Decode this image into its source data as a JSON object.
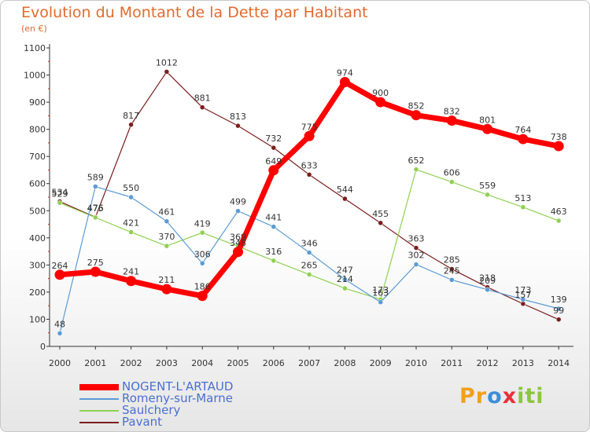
{
  "chart_data": {
    "type": "line",
    "title": "Evolution du Montant de la Dette par Habitant",
    "subtitle": "(en €)",
    "x": [
      "2000",
      "2001",
      "2002",
      "2003",
      "2004",
      "2005",
      "2006",
      "2007",
      "2008",
      "2009",
      "2010",
      "2011",
      "2012",
      "2013",
      "2014"
    ],
    "yticks": [
      0,
      100,
      200,
      300,
      400,
      500,
      600,
      700,
      800,
      900,
      1000,
      1100
    ],
    "ylim": [
      0,
      1100
    ],
    "grid": false,
    "legend_position": "bottom-left",
    "series": [
      {
        "name": "NOGENT-L'ARTAUD",
        "color": "#ff0000",
        "values": [
          264,
          275,
          241,
          211,
          186,
          348,
          649,
          775,
          974,
          900,
          852,
          832,
          801,
          764,
          738
        ]
      },
      {
        "name": "Romeny-sur-Marne",
        "color": "#5b9bd5",
        "values": [
          48,
          589,
          550,
          461,
          306,
          499,
          441,
          346,
          247,
          163,
          302,
          245,
          209,
          173,
          139
        ]
      },
      {
        "name": "Saulchery",
        "color": "#8fd14f",
        "values": [
          529,
          475,
          421,
          370,
          419,
          369,
          316,
          265,
          214,
          173,
          652,
          606,
          559,
          513,
          463
        ]
      },
      {
        "name": "Pavant",
        "color": "#7b1d1d",
        "values": [
          534,
          476,
          817,
          1012,
          881,
          813,
          732,
          633,
          544,
          455,
          363,
          285,
          218,
          157,
          99
        ]
      }
    ]
  },
  "logo": {
    "parts": [
      {
        "text": "P",
        "color": "#f0a020"
      },
      {
        "text": "r",
        "color": "#f0a020"
      },
      {
        "text": "o",
        "color": "#3a8fd8"
      },
      {
        "text": "x",
        "color": "#e8303a"
      },
      {
        "text": "i",
        "color": "#8cc63f"
      },
      {
        "text": "t",
        "color": "#8cc63f"
      },
      {
        "text": "i",
        "color": "#8cc63f"
      }
    ]
  }
}
